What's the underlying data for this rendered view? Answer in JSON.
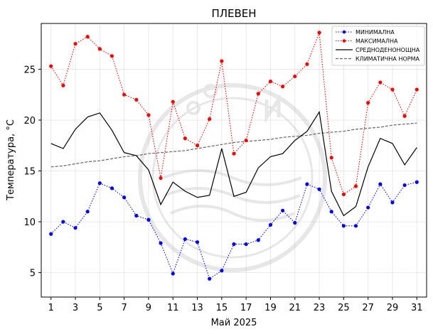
{
  "chart_data": {
    "type": "line",
    "title": "ПЛЕВЕН",
    "xlabel": "Май  2025",
    "ylabel": "Температура,  °С",
    "xlim": [
      0.2,
      31.8
    ],
    "ylim": [
      2.6,
      29.5
    ],
    "x_ticks": [
      1,
      3,
      5,
      7,
      9,
      11,
      13,
      15,
      17,
      19,
      21,
      23,
      25,
      27,
      29,
      31
    ],
    "y_ticks": [
      5,
      10,
      15,
      20,
      25
    ],
    "grid": true,
    "legend_position": "top-right",
    "x": [
      1,
      2,
      3,
      4,
      5,
      6,
      7,
      8,
      9,
      10,
      11,
      12,
      13,
      14,
      15,
      16,
      17,
      18,
      19,
      20,
      21,
      22,
      23,
      24,
      25,
      26,
      27,
      28,
      29,
      30,
      31
    ],
    "series": [
      {
        "name": "МИНИМАЛНА",
        "color": "#0000ff",
        "style": "dotted-markers",
        "values": [
          8.8,
          10.0,
          9.4,
          11.0,
          13.8,
          13.3,
          12.4,
          10.6,
          10.2,
          7.9,
          4.9,
          8.3,
          8.0,
          4.4,
          5.2,
          7.8,
          7.8,
          8.2,
          9.7,
          11.1,
          9.9,
          13.7,
          13.2,
          11.0,
          9.6,
          9.6,
          11.4,
          13.7,
          11.9,
          13.6,
          13.9
        ]
      },
      {
        "name": "МАКСИМАЛНА",
        "color": "#ff0000",
        "style": "dotted-markers",
        "values": [
          25.3,
          23.4,
          27.5,
          28.2,
          27.0,
          26.3,
          22.5,
          22.0,
          20.5,
          14.3,
          21.8,
          18.2,
          17.5,
          20.1,
          25.8,
          16.7,
          18.0,
          22.6,
          23.8,
          23.3,
          24.3,
          25.5,
          28.6,
          16.3,
          12.7,
          13.5,
          21.7,
          23.7,
          23.0,
          20.4,
          23.0
        ]
      },
      {
        "name": "СРЕДНОДЕНОНОЩНА",
        "color": "#000000",
        "style": "solid",
        "values": [
          17.7,
          17.2,
          19.1,
          20.3,
          20.7,
          19.0,
          16.8,
          16.5,
          15.1,
          11.7,
          13.9,
          13.0,
          12.4,
          12.6,
          17.2,
          12.5,
          12.9,
          15.3,
          16.4,
          16.7,
          18.0,
          18.9,
          20.8,
          13.0,
          10.6,
          11.5,
          15.4,
          18.2,
          17.7,
          15.6,
          17.3
        ]
      },
      {
        "name": "КЛИМАТИЧНА НОРМА",
        "color": "#666666",
        "style": "dashed",
        "values": [
          15.4,
          15.5,
          15.7,
          15.9,
          16.0,
          16.2,
          16.4,
          16.5,
          16.7,
          16.8,
          16.9,
          17.0,
          17.2,
          17.4,
          17.6,
          17.8,
          17.9,
          18.0,
          18.1,
          18.3,
          18.4,
          18.5,
          18.7,
          18.8,
          18.9,
          19.1,
          19.2,
          19.3,
          19.5,
          19.6,
          19.7
        ]
      }
    ]
  }
}
